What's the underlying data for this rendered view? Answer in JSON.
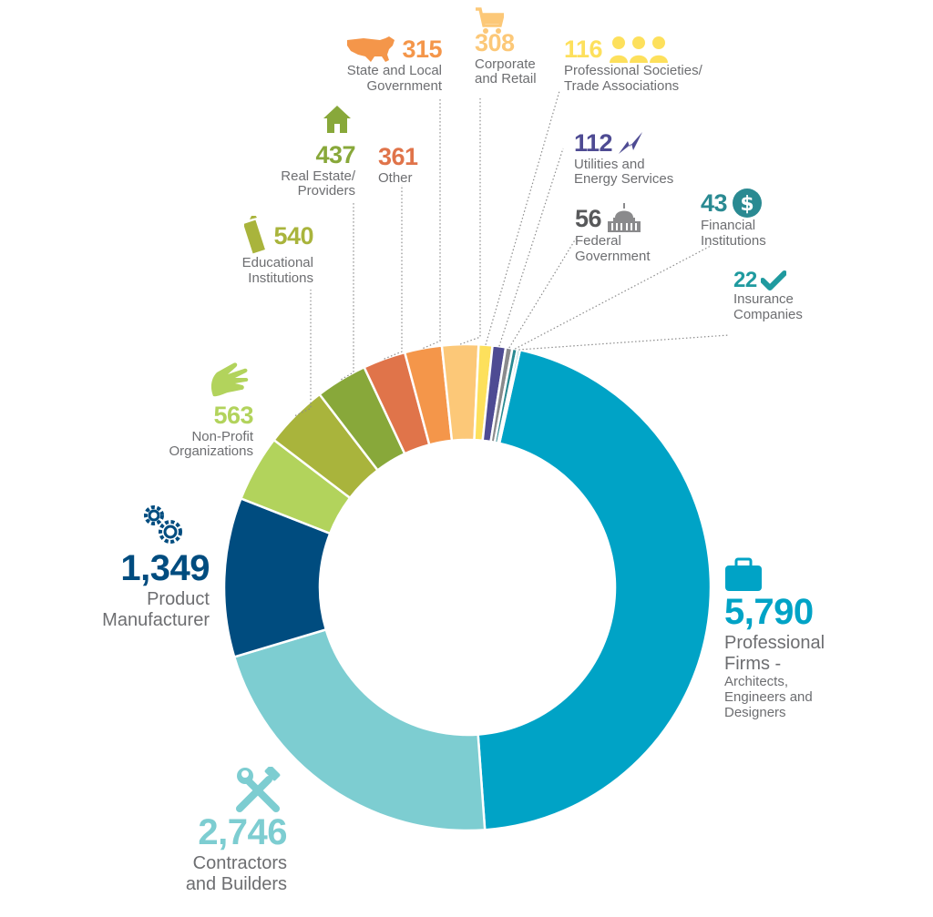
{
  "chart_data": {
    "type": "pie",
    "slices": [
      {
        "value": 5790,
        "value_label": "5,790",
        "label": [
          "Professional",
          "Firms -"
        ],
        "sublabel": [
          "Architects,",
          "Engineers and",
          "Designers"
        ],
        "color": "#00a3c6",
        "icon": "briefcase-icon"
      },
      {
        "value": 2746,
        "value_label": "2,746",
        "label": [
          "Contractors",
          "and Builders"
        ],
        "color": "#7dcdd1",
        "icon": "tools-icon"
      },
      {
        "value": 1349,
        "value_label": "1,349",
        "label": [
          "Product",
          "Manufacturer"
        ],
        "color": "#004c7f",
        "icon": "gears-icon"
      },
      {
        "value": 563,
        "value_label": "563",
        "label": [
          "Non-Profit",
          "Organizations"
        ],
        "color": "#b2d35c",
        "icon": "hand-icon"
      },
      {
        "value": 540,
        "value_label": "540",
        "label": [
          "Educational",
          "Institutions"
        ],
        "color": "#a9b43c",
        "icon": "pencil-icon"
      },
      {
        "value": 437,
        "value_label": "437",
        "label": [
          "Real Estate/",
          "Providers"
        ],
        "color": "#88a83a",
        "icon": "house-icon"
      },
      {
        "value": 361,
        "value_label": "361",
        "label": [
          "Other"
        ],
        "color": "#e0744a",
        "icon": ""
      },
      {
        "value": 315,
        "value_label": "315",
        "label": [
          "State and Local",
          "Government"
        ],
        "color": "#f4964a",
        "icon": "usa-map-icon"
      },
      {
        "value": 308,
        "value_label": "308",
        "label": [
          "Corporate",
          "and Retail"
        ],
        "color": "#fcc878",
        "icon": "shopping-cart-icon"
      },
      {
        "value": 116,
        "value_label": "116",
        "label": [
          "Professional Societies/",
          "Trade Associations"
        ],
        "color": "#fde05c",
        "icon": "people-icon"
      },
      {
        "value": 112,
        "value_label": "112",
        "label": [
          "Utilities and",
          "Energy Services"
        ],
        "color": "#4e4b93",
        "icon": "lightning-icon"
      },
      {
        "value": 56,
        "value_label": "56",
        "label": [
          "Federal",
          "Government"
        ],
        "color": "#8a8a8c",
        "icon": "capitol-icon"
      },
      {
        "value": 43,
        "value_label": "43",
        "label": [
          "Financial",
          "Institutions"
        ],
        "color": "#2a8a92",
        "icon": "dollar-icon"
      },
      {
        "value": 22,
        "value_label": "22",
        "label": [
          "Insurance",
          "Companies"
        ],
        "color": "#1f9a9f",
        "icon": "checkmark-icon"
      }
    ],
    "title": "",
    "legend": "none",
    "hole": "donut"
  }
}
